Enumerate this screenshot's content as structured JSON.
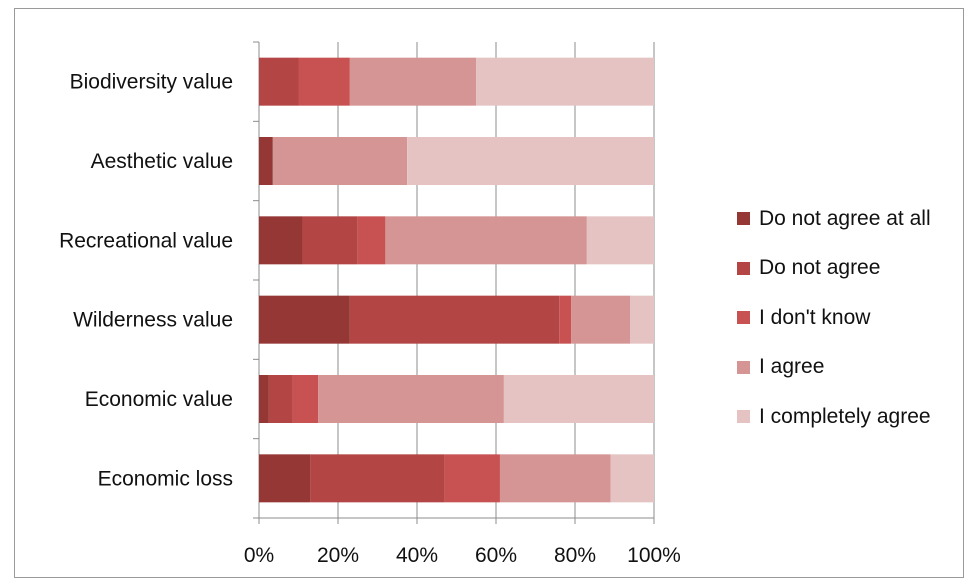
{
  "chart_data": {
    "type": "bar",
    "orientation": "horizontal",
    "stacked": "percent",
    "title": "",
    "xlabel": "",
    "ylabel": "",
    "xlim": [
      0,
      100
    ],
    "x_ticks": [
      "0%",
      "20%",
      "40%",
      "60%",
      "80%",
      "100%"
    ],
    "grid": "vertical",
    "legend_position": "right",
    "categories": [
      "Biodiversity value",
      "Aesthetic value",
      "Recreational value",
      "Wilderness value",
      "Economic value",
      "Economic loss"
    ],
    "series": [
      {
        "name": "Do not agree at all",
        "color": "#953735",
        "values": [
          0,
          3.5,
          11,
          23,
          2.5,
          13
        ]
      },
      {
        "name": "Do not agree",
        "color": "#b34545",
        "values": [
          10,
          0,
          14,
          53,
          6,
          34
        ]
      },
      {
        "name": "I don't know",
        "color": "#c85252",
        "values": [
          13,
          0,
          7,
          3,
          6.5,
          14
        ]
      },
      {
        "name": "I agree",
        "color": "#d69595",
        "values": [
          32,
          34,
          51,
          15,
          47,
          28
        ]
      },
      {
        "name": "I completely agree",
        "color": "#e6c3c3",
        "values": [
          45,
          62.5,
          17,
          6,
          38,
          11
        ]
      }
    ]
  }
}
